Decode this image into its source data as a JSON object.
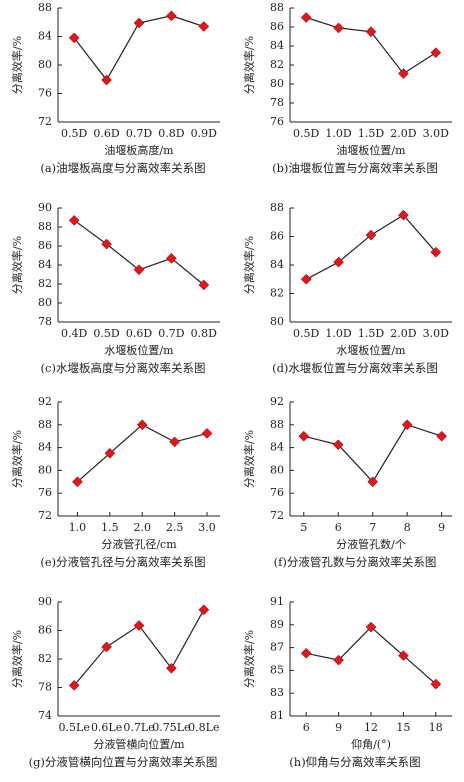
{
  "chart_data": [
    {
      "type": "line",
      "caption": "(a)油堰板高度与分离效率关系图",
      "x_label": "油堰板高度/m",
      "y_label": "分离效率/%",
      "categories": [
        "0.5D",
        "0.6D",
        "0.7D",
        "0.8D",
        "0.9D"
      ],
      "values": [
        83.8,
        77.9,
        85.9,
        86.9,
        85.4
      ],
      "color": "#e8141b",
      "ylim": [
        72,
        88
      ],
      "yticks": [
        72,
        76,
        80,
        84,
        88
      ]
    },
    {
      "type": "line",
      "caption": "(b)油堰板位置与分离效率关系图",
      "x_label": "油堰板位置/m",
      "y_label": "分离效率/%",
      "categories": [
        "0.5D",
        "1.0D",
        "1.5D",
        "2.0D",
        "3.0D"
      ],
      "values": [
        87.0,
        85.9,
        85.5,
        81.1,
        83.3
      ],
      "color": "#e8141b",
      "ylim": [
        76,
        88
      ],
      "yticks": [
        76,
        78,
        80,
        82,
        84,
        86,
        88
      ]
    },
    {
      "type": "line",
      "caption": "(c)水堰板高度与分离效率关系图",
      "x_label": "水堰板位置/m",
      "y_label": "分离效率/%",
      "categories": [
        "0.4D",
        "0.5D",
        "0.6D",
        "0.7D",
        "0.8D"
      ],
      "values": [
        88.7,
        86.2,
        83.5,
        84.7,
        81.9
      ],
      "color": "#e8141b",
      "ylim": [
        78,
        90
      ],
      "yticks": [
        78,
        80,
        82,
        84,
        86,
        88,
        90
      ]
    },
    {
      "type": "line",
      "caption": "(d)水堰板位置与分离效率关系图",
      "x_label": "水堰板位置/m",
      "y_label": "分离效率/%",
      "categories": [
        "0.5D",
        "1.0D",
        "1.5D",
        "2.0D",
        "3.0D"
      ],
      "values": [
        83.0,
        84.2,
        86.1,
        87.5,
        84.9
      ],
      "color": "#e8141b",
      "ylim": [
        80,
        88
      ],
      "yticks": [
        80,
        82,
        84,
        86,
        88
      ]
    },
    {
      "type": "line",
      "caption": "(e)分液管孔径与分离效率关系图",
      "x_label": "分液管孔径/cm",
      "y_label": "分离效率/%",
      "x": [
        1.0,
        1.5,
        2.0,
        2.5,
        3.0
      ],
      "values": [
        78,
        83,
        88,
        85,
        86.5
      ],
      "color": "#e8141b",
      "xlim": [
        0.7,
        3.2
      ],
      "xticks": [
        {
          "value": 1,
          "label": "1.0"
        },
        1.5,
        {
          "value": 2,
          "label": "2.0"
        },
        2.5,
        {
          "value": 3,
          "label": "3.0"
        }
      ],
      "ylim": [
        72,
        92
      ],
      "yticks": [
        72,
        76,
        80,
        84,
        88,
        92
      ]
    },
    {
      "type": "line",
      "caption": "(f)分液管孔数与分离效率关系图",
      "x_label": "分液管孔数/个",
      "y_label": "分离效率/%",
      "x": [
        5,
        6,
        7,
        8,
        9
      ],
      "values": [
        86,
        84.5,
        78,
        88,
        86
      ],
      "color": "#e8141b",
      "xlim": [
        4.6,
        9.3
      ],
      "xticks": [
        5,
        6,
        7,
        8,
        9
      ],
      "ylim": [
        72,
        92
      ],
      "yticks": [
        72,
        76,
        80,
        84,
        88,
        92
      ]
    },
    {
      "type": "line",
      "caption": "(g)分液管横向位置与分离效率关系图",
      "x_label": "分液管横向位置/m",
      "y_label": "分离效率/%",
      "categories": [
        "0.5Le",
        "0.6Le",
        "0.7Le",
        "0.75Le",
        "0.8Le"
      ],
      "values": [
        78.3,
        83.7,
        86.7,
        80.7,
        88.9
      ],
      "color": "#e8141b",
      "ylim": [
        74,
        90
      ],
      "yticks": [
        74,
        78,
        82,
        86,
        90
      ]
    },
    {
      "type": "line",
      "caption": "(h)仰角与分离效率关系图",
      "x_label": "仰角/(°)",
      "y_label": "分离效率/%",
      "x": [
        6,
        9,
        12,
        15,
        18
      ],
      "values": [
        86.5,
        85.9,
        88.8,
        86.3,
        83.8
      ],
      "color": "#e8141b",
      "xlim": [
        4.5,
        19.5
      ],
      "xticks": [
        6,
        9,
        12,
        15,
        18
      ],
      "ylim": [
        81,
        91
      ],
      "yticks": [
        81,
        83,
        85,
        87,
        89,
        91
      ]
    }
  ]
}
